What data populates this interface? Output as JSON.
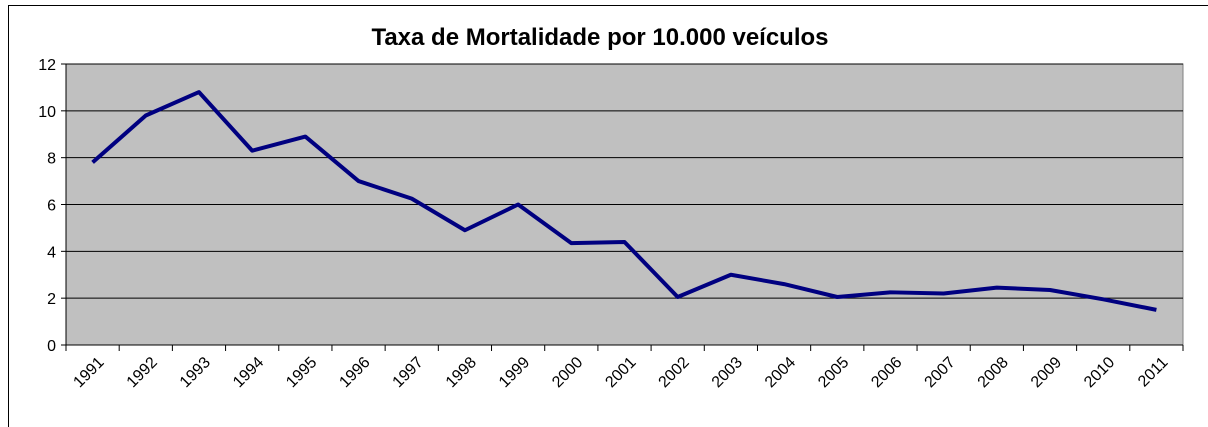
{
  "chart_data": {
    "type": "line",
    "title": "Taxa de Mortalidade por 10.000 veículos",
    "categories": [
      "1991",
      "1992",
      "1993",
      "1994",
      "1995",
      "1996",
      "1997",
      "1998",
      "1999",
      "2000",
      "2001",
      "2002",
      "2003",
      "2004",
      "2005",
      "2006",
      "2007",
      "2008",
      "2009",
      "2010",
      "2011"
    ],
    "series": [
      {
        "name": "Taxa de Mortalidade",
        "color": "#000080",
        "values": [
          7.8,
          9.8,
          10.8,
          8.3,
          8.9,
          7.0,
          6.25,
          4.9,
          6.0,
          4.35,
          4.4,
          2.05,
          3.0,
          2.6,
          2.05,
          2.25,
          2.2,
          2.45,
          2.35,
          1.95,
          1.5
        ]
      }
    ],
    "ylim": [
      0,
      12
    ],
    "yticks": [
      0,
      2,
      4,
      6,
      8,
      10,
      12
    ],
    "grid": true,
    "plot_background": "#c0c0c0"
  }
}
